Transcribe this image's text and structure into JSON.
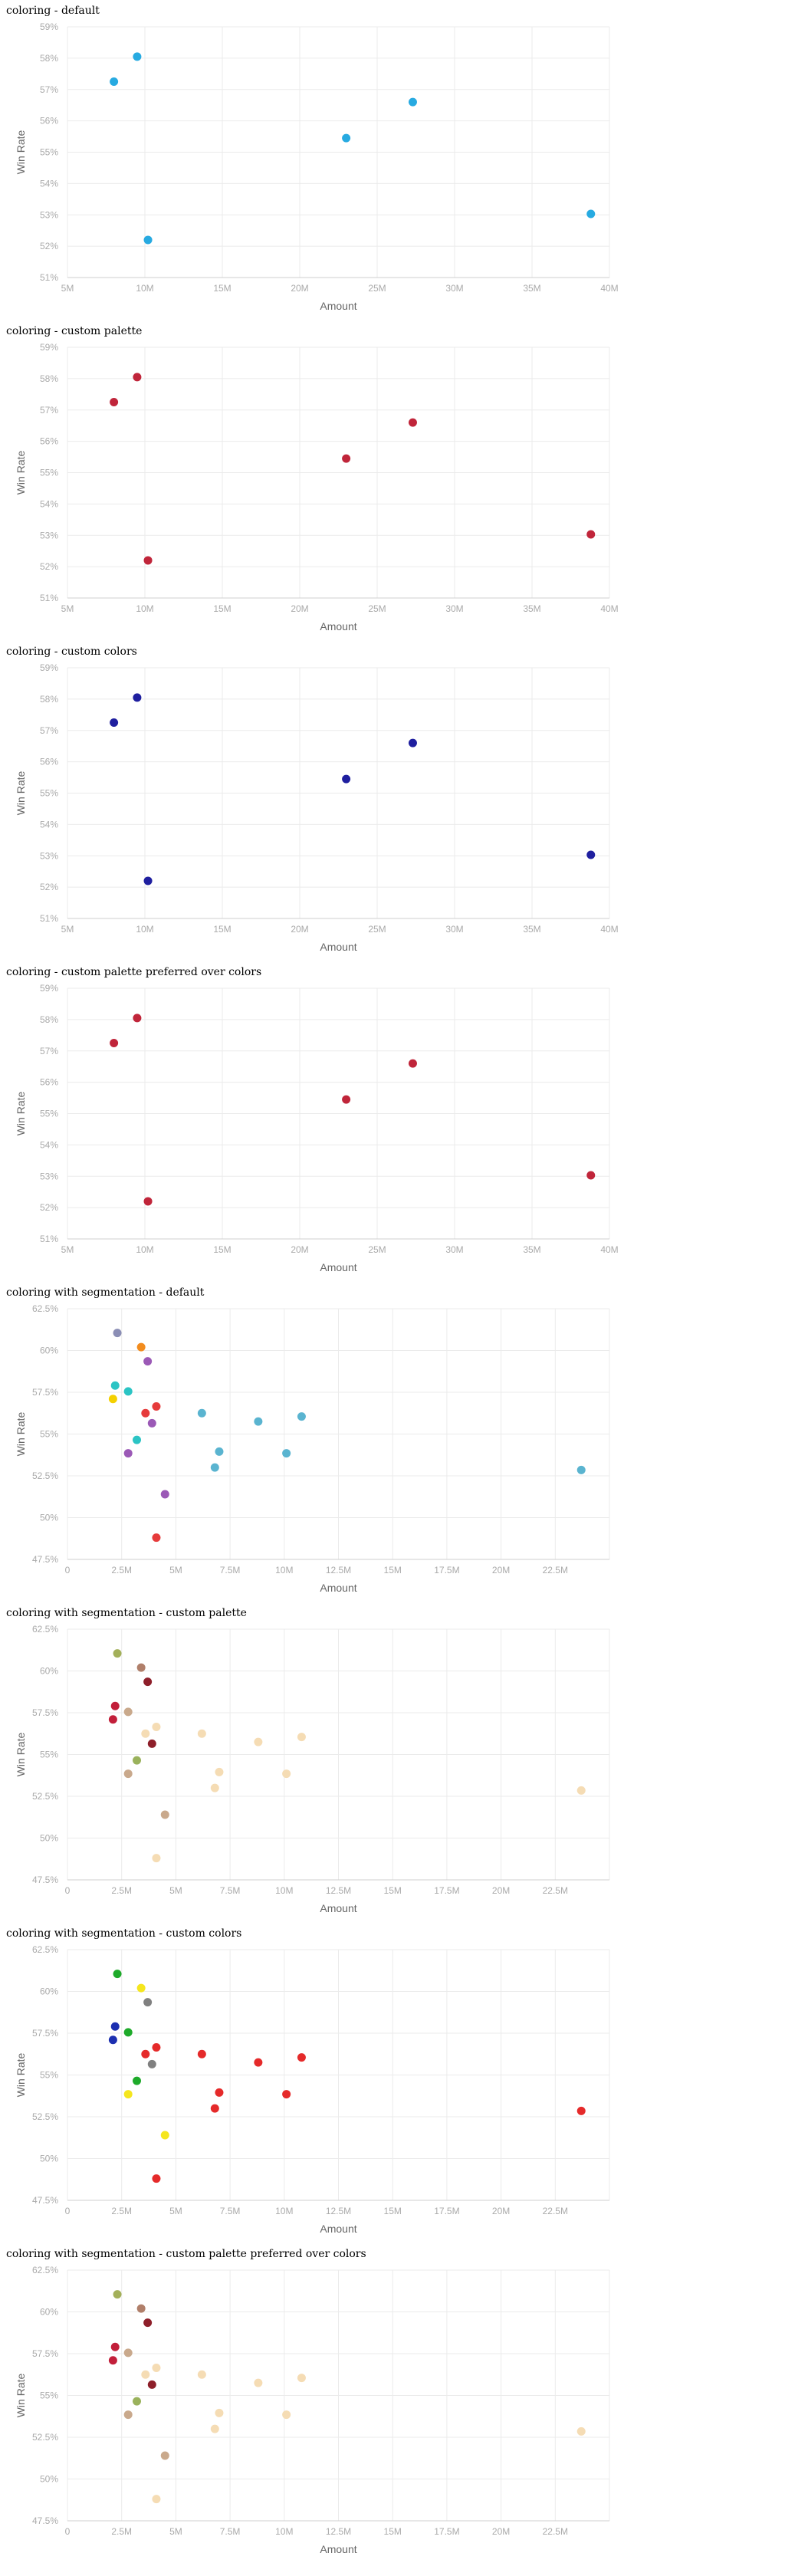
{
  "chart_data": [
    {
      "title": "coloring - default",
      "type": "scatter",
      "xlabel": "Amount",
      "ylabel": "Win Rate",
      "xlim": [
        5000000,
        40000000
      ],
      "ylim": [
        0.51,
        0.59
      ],
      "x_ticks": [
        "5M",
        "10M",
        "15M",
        "20M",
        "25M",
        "30M",
        "35M",
        "40M"
      ],
      "y_ticks": [
        "51%",
        "52%",
        "53%",
        "54%",
        "55%",
        "56%",
        "57%",
        "58%",
        "59%"
      ],
      "series": [
        {
          "color": "#27aae1",
          "points": [
            {
              "x": 8000000,
              "y": 0.5725
            },
            {
              "x": 9500000,
              "y": 0.5805
            },
            {
              "x": 10200000,
              "y": 0.522
            },
            {
              "x": 23000000,
              "y": 0.5545
            },
            {
              "x": 27300000,
              "y": 0.566
            },
            {
              "x": 38800000,
              "y": 0.5303
            }
          ]
        }
      ]
    },
    {
      "title": "coloring - custom palette",
      "type": "scatter",
      "xlabel": "Amount",
      "ylabel": "Win Rate",
      "xlim": [
        5000000,
        40000000
      ],
      "ylim": [
        0.51,
        0.59
      ],
      "x_ticks": [
        "5M",
        "10M",
        "15M",
        "20M",
        "25M",
        "30M",
        "35M",
        "40M"
      ],
      "y_ticks": [
        "51%",
        "52%",
        "53%",
        "54%",
        "55%",
        "56%",
        "57%",
        "58%",
        "59%"
      ],
      "series": [
        {
          "color": "#c0253a",
          "points": [
            {
              "x": 8000000,
              "y": 0.5725
            },
            {
              "x": 9500000,
              "y": 0.5805
            },
            {
              "x": 10200000,
              "y": 0.522
            },
            {
              "x": 23000000,
              "y": 0.5545
            },
            {
              "x": 27300000,
              "y": 0.566
            },
            {
              "x": 38800000,
              "y": 0.5303
            }
          ]
        }
      ]
    },
    {
      "title": "coloring - custom colors",
      "type": "scatter",
      "xlabel": "Amount",
      "ylabel": "Win Rate",
      "xlim": [
        5000000,
        40000000
      ],
      "ylim": [
        0.51,
        0.59
      ],
      "x_ticks": [
        "5M",
        "10M",
        "15M",
        "20M",
        "25M",
        "30M",
        "35M",
        "40M"
      ],
      "y_ticks": [
        "51%",
        "52%",
        "53%",
        "54%",
        "55%",
        "56%",
        "57%",
        "58%",
        "59%"
      ],
      "series": [
        {
          "color": "#1f1f9f",
          "points": [
            {
              "x": 8000000,
              "y": 0.5725
            },
            {
              "x": 9500000,
              "y": 0.5805
            },
            {
              "x": 10200000,
              "y": 0.522
            },
            {
              "x": 23000000,
              "y": 0.5545
            },
            {
              "x": 27300000,
              "y": 0.566
            },
            {
              "x": 38800000,
              "y": 0.5303
            }
          ]
        }
      ]
    },
    {
      "title": "coloring - custom palette preferred over colors",
      "type": "scatter",
      "xlabel": "Amount",
      "ylabel": "Win Rate",
      "xlim": [
        5000000,
        40000000
      ],
      "ylim": [
        0.51,
        0.59
      ],
      "x_ticks": [
        "5M",
        "10M",
        "15M",
        "20M",
        "25M",
        "30M",
        "35M",
        "40M"
      ],
      "y_ticks": [
        "51%",
        "52%",
        "53%",
        "54%",
        "55%",
        "56%",
        "57%",
        "58%",
        "59%"
      ],
      "series": [
        {
          "color": "#c0253a",
          "points": [
            {
              "x": 8000000,
              "y": 0.5725
            },
            {
              "x": 9500000,
              "y": 0.5805
            },
            {
              "x": 10200000,
              "y": 0.522
            },
            {
              "x": 23000000,
              "y": 0.5545
            },
            {
              "x": 27300000,
              "y": 0.566
            },
            {
              "x": 38800000,
              "y": 0.5303
            }
          ]
        }
      ]
    },
    {
      "title": "coloring with segmentation - default",
      "type": "scatter",
      "xlabel": "Amount",
      "ylabel": "Win Rate",
      "xlim": [
        0,
        25000000
      ],
      "ylim": [
        0.475,
        0.625
      ],
      "x_ticks": [
        "0",
        "2.5M",
        "5M",
        "7.5M",
        "10M",
        "12.5M",
        "15M",
        "17.5M",
        "20M",
        "22.5M"
      ],
      "y_ticks": [
        "47.5%",
        "50%",
        "52.5%",
        "55%",
        "57.5%",
        "60%",
        "62.5%"
      ],
      "series": [
        {
          "color": "#8b8eb5",
          "points": [
            {
              "x": 2300000,
              "y": 0.6105
            }
          ]
        },
        {
          "color": "#f28c1e",
          "points": [
            {
              "x": 3400000,
              "y": 0.602
            }
          ]
        },
        {
          "color": "#9b59b6",
          "points": [
            {
              "x": 3700000,
              "y": 0.5935
            },
            {
              "x": 3900000,
              "y": 0.5565
            },
            {
              "x": 2800000,
              "y": 0.5385
            },
            {
              "x": 4500000,
              "y": 0.514
            }
          ]
        },
        {
          "color": "#2bc4c4",
          "points": [
            {
              "x": 2200000,
              "y": 0.579
            },
            {
              "x": 2800000,
              "y": 0.5755
            },
            {
              "x": 3200000,
              "y": 0.5465
            }
          ]
        },
        {
          "color": "#f4d000",
          "points": [
            {
              "x": 2100000,
              "y": 0.571
            }
          ]
        },
        {
          "color": "#e63b3b",
          "points": [
            {
              "x": 3600000,
              "y": 0.5625
            },
            {
              "x": 4100000,
              "y": 0.5665
            },
            {
              "x": 4100000,
              "y": 0.488
            }
          ]
        },
        {
          "color": "#5ab4d0",
          "points": [
            {
              "x": 6200000,
              "y": 0.5625
            },
            {
              "x": 8800000,
              "y": 0.5575
            },
            {
              "x": 10800000,
              "y": 0.5605
            },
            {
              "x": 7000000,
              "y": 0.5395
            },
            {
              "x": 10100000,
              "y": 0.5385
            },
            {
              "x": 6800000,
              "y": 0.53
            },
            {
              "x": 23700000,
              "y": 0.5285
            }
          ]
        }
      ]
    },
    {
      "title": "coloring with segmentation - custom palette",
      "type": "scatter",
      "xlabel": "Amount",
      "ylabel": "Win Rate",
      "xlim": [
        0,
        25000000
      ],
      "ylim": [
        0.475,
        0.625
      ],
      "x_ticks": [
        "0",
        "2.5M",
        "5M",
        "7.5M",
        "10M",
        "12.5M",
        "15M",
        "17.5M",
        "20M",
        "22.5M"
      ],
      "y_ticks": [
        "47.5%",
        "50%",
        "52.5%",
        "55%",
        "57.5%",
        "60%",
        "62.5%"
      ],
      "series": [
        {
          "color": "#a3b05a",
          "points": [
            {
              "x": 2300000,
              "y": 0.6105
            }
          ]
        },
        {
          "color": "#b07f6a",
          "points": [
            {
              "x": 3400000,
              "y": 0.602
            }
          ]
        },
        {
          "color": "#8e1f2a",
          "points": [
            {
              "x": 3700000,
              "y": 0.5935
            },
            {
              "x": 3900000,
              "y": 0.5565
            }
          ]
        },
        {
          "color": "#c9a98c",
          "points": [
            {
              "x": 2800000,
              "y": 0.5755
            },
            {
              "x": 2800000,
              "y": 0.5385
            },
            {
              "x": 4500000,
              "y": 0.514
            }
          ]
        },
        {
          "color": "#c21f3a",
          "points": [
            {
              "x": 2200000,
              "y": 0.579
            },
            {
              "x": 2100000,
              "y": 0.571
            }
          ]
        },
        {
          "color": "#9ab25c",
          "points": [
            {
              "x": 3200000,
              "y": 0.5465
            }
          ]
        },
        {
          "color": "#f5dcb4",
          "points": [
            {
              "x": 3600000,
              "y": 0.5625
            },
            {
              "x": 4100000,
              "y": 0.5665
            },
            {
              "x": 4100000,
              "y": 0.488
            },
            {
              "x": 6200000,
              "y": 0.5625
            },
            {
              "x": 8800000,
              "y": 0.5575
            },
            {
              "x": 10800000,
              "y": 0.5605
            },
            {
              "x": 7000000,
              "y": 0.5395
            },
            {
              "x": 10100000,
              "y": 0.5385
            },
            {
              "x": 6800000,
              "y": 0.53
            },
            {
              "x": 23700000,
              "y": 0.5285
            }
          ]
        }
      ]
    },
    {
      "title": "coloring with segmentation - custom colors",
      "type": "scatter",
      "xlabel": "Amount",
      "ylabel": "Win Rate",
      "xlim": [
        0,
        25000000
      ],
      "ylim": [
        0.475,
        0.625
      ],
      "x_ticks": [
        "0",
        "2.5M",
        "5M",
        "7.5M",
        "10M",
        "12.5M",
        "15M",
        "17.5M",
        "20M",
        "22.5M"
      ],
      "y_ticks": [
        "47.5%",
        "50%",
        "52.5%",
        "55%",
        "57.5%",
        "60%",
        "62.5%"
      ],
      "series": [
        {
          "color": "#1eaa2a",
          "points": [
            {
              "x": 2300000,
              "y": 0.6105
            },
            {
              "x": 2800000,
              "y": 0.5755
            },
            {
              "x": 3200000,
              "y": 0.5465
            }
          ]
        },
        {
          "color": "#f5e61e",
          "points": [
            {
              "x": 3400000,
              "y": 0.602
            },
            {
              "x": 2800000,
              "y": 0.5385
            },
            {
              "x": 4500000,
              "y": 0.514
            }
          ]
        },
        {
          "color": "#808080",
          "points": [
            {
              "x": 3700000,
              "y": 0.5935
            },
            {
              "x": 3900000,
              "y": 0.5565
            }
          ]
        },
        {
          "color": "#1c2fb0",
          "points": [
            {
              "x": 2200000,
              "y": 0.579
            },
            {
              "x": 2100000,
              "y": 0.571
            }
          ]
        },
        {
          "color": "#e52a2a",
          "points": [
            {
              "x": 3600000,
              "y": 0.5625
            },
            {
              "x": 4100000,
              "y": 0.5665
            },
            {
              "x": 4100000,
              "y": 0.488
            },
            {
              "x": 6200000,
              "y": 0.5625
            },
            {
              "x": 8800000,
              "y": 0.5575
            },
            {
              "x": 10800000,
              "y": 0.5605
            },
            {
              "x": 7000000,
              "y": 0.5395
            },
            {
              "x": 10100000,
              "y": 0.5385
            },
            {
              "x": 6800000,
              "y": 0.53
            },
            {
              "x": 23700000,
              "y": 0.5285
            }
          ]
        }
      ]
    },
    {
      "title": "coloring with segmentation - custom palette preferred over colors",
      "type": "scatter",
      "xlabel": "Amount",
      "ylabel": "Win Rate",
      "xlim": [
        0,
        25000000
      ],
      "ylim": [
        0.475,
        0.625
      ],
      "x_ticks": [
        "0",
        "2.5M",
        "5M",
        "7.5M",
        "10M",
        "12.5M",
        "15M",
        "17.5M",
        "20M",
        "22.5M"
      ],
      "y_ticks": [
        "47.5%",
        "50%",
        "52.5%",
        "55%",
        "57.5%",
        "60%",
        "62.5%"
      ],
      "series": [
        {
          "color": "#a3b05a",
          "points": [
            {
              "x": 2300000,
              "y": 0.6105
            }
          ]
        },
        {
          "color": "#b07f6a",
          "points": [
            {
              "x": 3400000,
              "y": 0.602
            }
          ]
        },
        {
          "color": "#8e1f2a",
          "points": [
            {
              "x": 3700000,
              "y": 0.5935
            },
            {
              "x": 3900000,
              "y": 0.5565
            }
          ]
        },
        {
          "color": "#c9a98c",
          "points": [
            {
              "x": 2800000,
              "y": 0.5755
            },
            {
              "x": 2800000,
              "y": 0.5385
            },
            {
              "x": 4500000,
              "y": 0.514
            }
          ]
        },
        {
          "color": "#c21f3a",
          "points": [
            {
              "x": 2200000,
              "y": 0.579
            },
            {
              "x": 2100000,
              "y": 0.571
            }
          ]
        },
        {
          "color": "#9ab25c",
          "points": [
            {
              "x": 3200000,
              "y": 0.5465
            }
          ]
        },
        {
          "color": "#f5dcb4",
          "points": [
            {
              "x": 3600000,
              "y": 0.5625
            },
            {
              "x": 4100000,
              "y": 0.5665
            },
            {
              "x": 4100000,
              "y": 0.488
            },
            {
              "x": 6200000,
              "y": 0.5625
            },
            {
              "x": 8800000,
              "y": 0.5575
            },
            {
              "x": 10800000,
              "y": 0.5605
            },
            {
              "x": 7000000,
              "y": 0.5395
            },
            {
              "x": 10100000,
              "y": 0.5385
            },
            {
              "x": 6800000,
              "y": 0.53
            },
            {
              "x": 23700000,
              "y": 0.5285
            }
          ]
        }
      ]
    }
  ]
}
